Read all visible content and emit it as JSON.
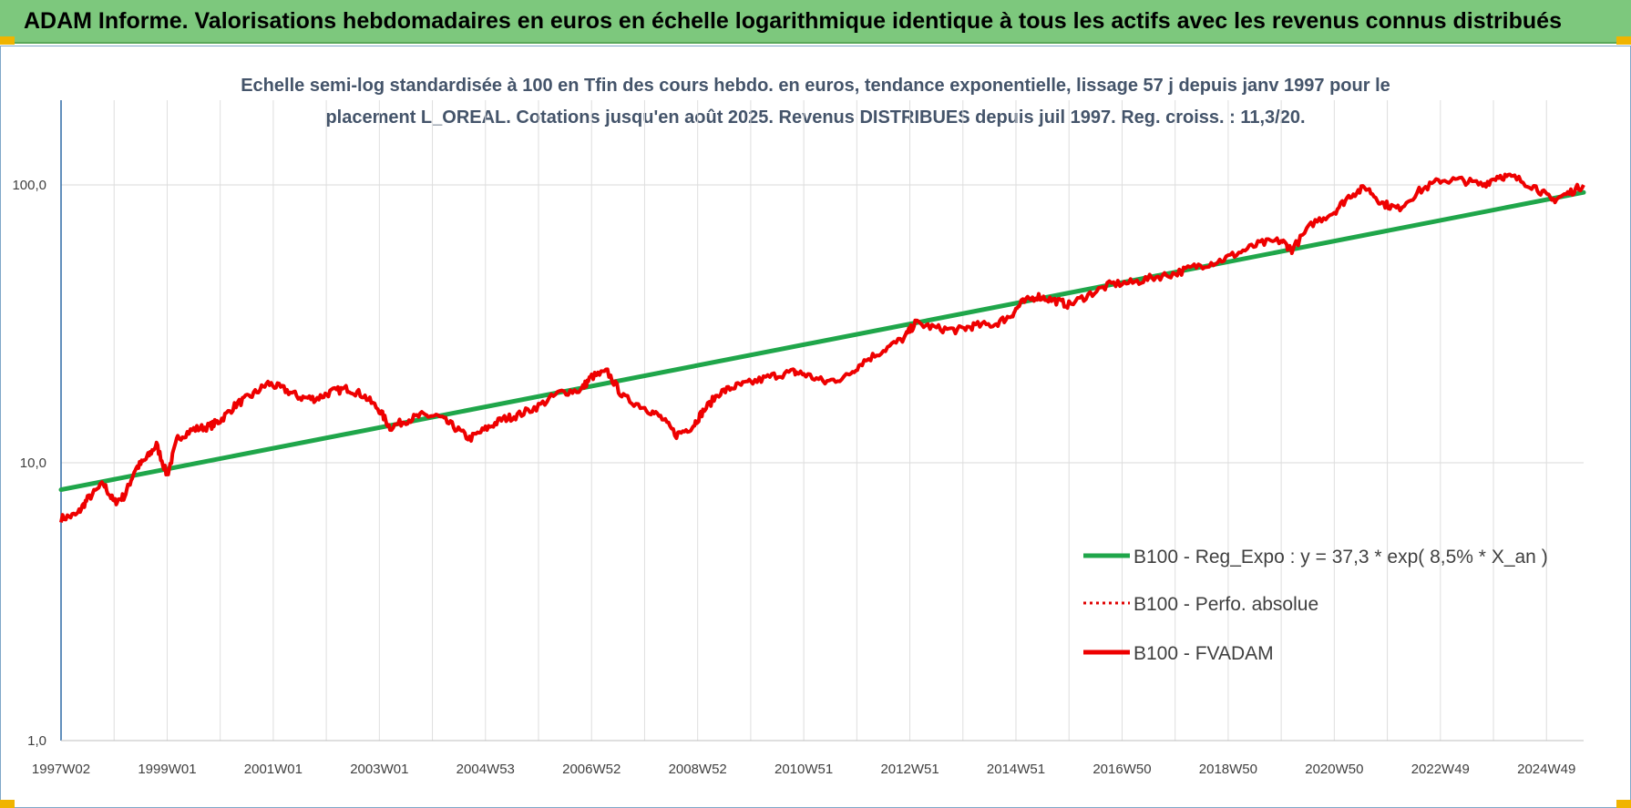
{
  "header": {
    "title": "ADAM Informe. Valorisations hebdomadaires en euros en échelle logarithmique identique à tous les actifs avec les revenus connus distribués"
  },
  "chart_data": {
    "type": "line",
    "title": "Echelle semi-log standardisée à 100 en Tfin des cours hebdo. en euros, tendance exponentielle, lissage 57 j depuis janv 1997 pour le placement L_OREAL. Cotations jusqu'en août 2025. Revenus DISTRIBUES depuis juil 1997. Reg. croiss. : 11,3/20.",
    "y_scale": "log",
    "ylim": [
      1,
      200
    ],
    "y_ticks": [
      {
        "value": 1,
        "label": "1,0"
      },
      {
        "value": 10,
        "label": "10,0"
      },
      {
        "value": 100,
        "label": "100,0"
      }
    ],
    "x_ticks": [
      "1997W02",
      "1999W01",
      "2001W01",
      "2003W01",
      "2004W53",
      "2006W52",
      "2008W52",
      "2010W51",
      "2012W51",
      "2014W51",
      "2016W50",
      "2018W50",
      "2020W50",
      "2022W49",
      "2024W49"
    ],
    "x_tick_years": [
      1997.0,
      1999.0,
      2001.0,
      2003.0,
      2005.0,
      2007.0,
      2009.0,
      2011.0,
      2013.0,
      2015.0,
      2017.0,
      2019.0,
      2021.0,
      2023.0,
      2025.0
    ],
    "x_range": [
      1997.0,
      2025.7
    ],
    "grid": {
      "vertical": true,
      "horizontal": true
    },
    "legend_position": "bottom-right",
    "series": [
      {
        "name": "B100 - Reg_Expo : y = 37,3 * exp( 8,5% *  X_an )",
        "color": "#1fa64a",
        "style": "solid",
        "x": [
          1997.0,
          2025.7
        ],
        "y": [
          8.0,
          94.0
        ]
      },
      {
        "name": "B100 - Perfo. absolue",
        "color": "#e00000",
        "style": "dotted",
        "x": [],
        "y": []
      },
      {
        "name": "B100 - FVADAM",
        "color": "#ee0000",
        "style": "solid",
        "x": [
          1997.0,
          1997.3,
          1997.5,
          1997.8,
          1998.0,
          1998.2,
          1998.4,
          1998.6,
          1998.8,
          1999.0,
          1999.2,
          1999.5,
          1999.8,
          2000.0,
          2000.3,
          2000.6,
          2000.9,
          2001.2,
          2001.5,
          2001.8,
          2002.1,
          2002.4,
          2002.7,
          2003.0,
          2003.2,
          2003.5,
          2003.8,
          2004.1,
          2004.4,
          2004.7,
          2005.0,
          2005.3,
          2005.6,
          2006.0,
          2006.4,
          2006.8,
          2007.0,
          2007.3,
          2007.6,
          2008.0,
          2008.3,
          2008.6,
          2008.9,
          2009.1,
          2009.4,
          2009.7,
          2010.0,
          2010.4,
          2010.8,
          2011.0,
          2011.4,
          2011.8,
          2012.1,
          2012.5,
          2012.9,
          2013.1,
          2013.5,
          2013.9,
          2014.2,
          2014.6,
          2014.9,
          2015.1,
          2015.4,
          2015.7,
          2016.0,
          2016.4,
          2016.8,
          2017.2,
          2017.6,
          2018.0,
          2018.4,
          2018.8,
          2019.2,
          2019.6,
          2020.0,
          2020.2,
          2020.6,
          2021.0,
          2021.3,
          2021.6,
          2021.9,
          2022.2,
          2022.6,
          2023.0,
          2023.4,
          2023.8,
          2024.1,
          2024.4,
          2024.8,
          2025.1,
          2025.4,
          2025.7
        ],
        "y": [
          6.3,
          6.5,
          7.4,
          8.4,
          7.2,
          7.6,
          9.5,
          10.3,
          11.6,
          9.0,
          12.3,
          13.2,
          13.5,
          14.2,
          16.2,
          17.5,
          19.3,
          18.4,
          17.2,
          17.0,
          18.0,
          18.5,
          17.5,
          15.5,
          13.4,
          14.2,
          14.8,
          14.7,
          13.5,
          12.2,
          13.2,
          14.3,
          14.8,
          16.0,
          17.9,
          18.3,
          20.4,
          21.2,
          17.2,
          15.8,
          14.6,
          12.6,
          13.5,
          15.3,
          17.8,
          18.8,
          19.4,
          20.5,
          21.2,
          20.9,
          19.5,
          20.4,
          23.0,
          25.4,
          28.2,
          31.8,
          30.5,
          30.0,
          31.1,
          31.5,
          33.8,
          37.5,
          39.8,
          38.5,
          37.0,
          40.5,
          44.0,
          44.5,
          46.5,
          48.0,
          51.0,
          53.0,
          57.0,
          61.5,
          63.0,
          58.5,
          73.0,
          80.0,
          92.0,
          98.0,
          86.0,
          82.0,
          95.0,
          104.0,
          104.0,
          100.0,
          108.0,
          106.0,
          98.0,
          88.0,
          93.0,
          100.0
        ]
      }
    ]
  }
}
